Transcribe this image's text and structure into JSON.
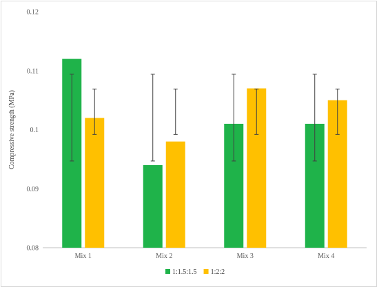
{
  "chart_data": {
    "type": "bar",
    "categories": [
      "Mix 1",
      "Mix 2",
      "Mix 3",
      "Mix 4"
    ],
    "series": [
      {
        "name": "1:1.5:1.5",
        "color": "#1fb34a",
        "values": [
          0.112,
          0.094,
          0.101,
          0.101
        ],
        "error_low": [
          0.0947,
          0.0947,
          0.0947,
          0.0947
        ],
        "error_high": [
          0.1094,
          0.1094,
          0.1094,
          0.1094
        ]
      },
      {
        "name": "1:2:2",
        "color": "#ffc000",
        "values": [
          0.102,
          0.098,
          0.107,
          0.105
        ],
        "error_low": [
          0.0992,
          0.0992,
          0.0992,
          0.0992
        ],
        "error_high": [
          0.1069,
          0.1069,
          0.1069,
          0.1069
        ]
      }
    ],
    "title": "",
    "xlabel": "",
    "ylabel": "Compressive strength (MPa)",
    "ylim": [
      0.08,
      0.12
    ],
    "yticks": [
      "0.08",
      "0.09",
      "0.1",
      "0.11",
      "0.12"
    ],
    "grid": false,
    "legend_position": "bottom"
  }
}
